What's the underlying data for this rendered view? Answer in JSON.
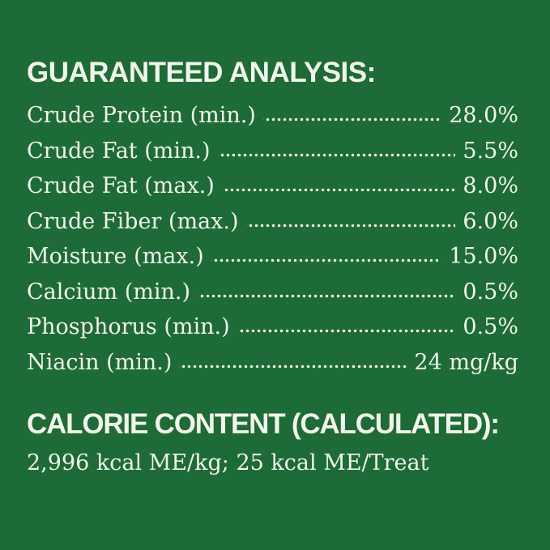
{
  "colors": {
    "background": "#1d6b36",
    "text": "#f3f5ec"
  },
  "guaranteed_analysis": {
    "title": "GUARANTEED ANALYSIS:",
    "rows": [
      {
        "label": "Crude Protein (min.)",
        "value": "28.0%"
      },
      {
        "label": "Crude Fat (min.)",
        "value": "5.5%"
      },
      {
        "label": "Crude Fat (max.)",
        "value": "8.0%"
      },
      {
        "label": "Crude Fiber (max.)",
        "value": "6.0%"
      },
      {
        "label": "Moisture (max.)",
        "value": "15.0%"
      },
      {
        "label": "Calcium (min.)",
        "value": "0.5%"
      },
      {
        "label": "Phosphorus (min.)",
        "value": "0.5%"
      },
      {
        "label": "Niacin (min.)",
        "value": "24 mg/kg"
      }
    ]
  },
  "calorie_content": {
    "title": "CALORIE CONTENT (CALCULATED):",
    "value": "2,996 kcal ME/kg; 25 kcal ME/Treat"
  }
}
